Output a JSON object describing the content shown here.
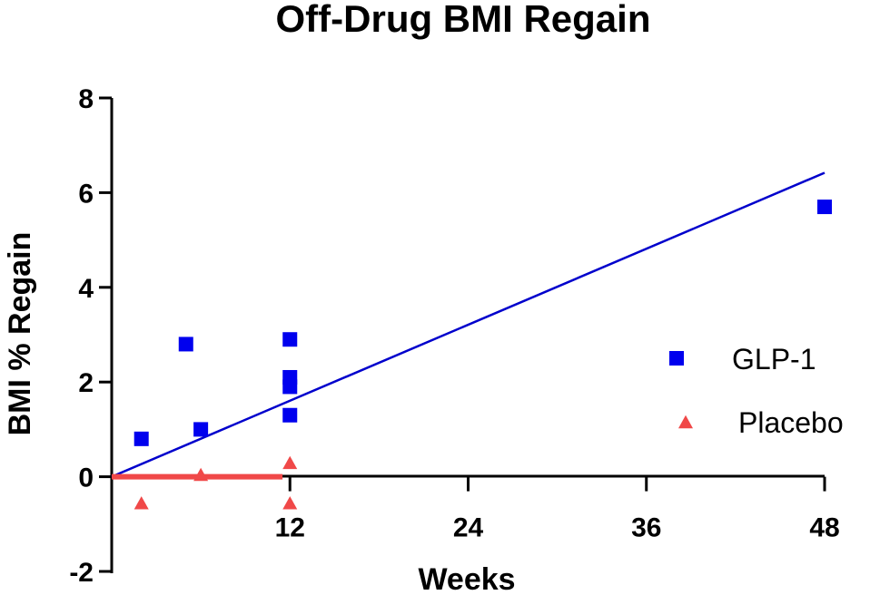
{
  "chart_data": {
    "type": "scatter",
    "title": "Off-Drug BMI Regain",
    "xlabel": "Weeks",
    "ylabel": "BMI % Regain",
    "xlim": [
      0,
      48
    ],
    "ylim": [
      -2,
      8
    ],
    "x_ticks": [
      12,
      24,
      36,
      48
    ],
    "y_ticks": [
      -2,
      0,
      2,
      4,
      6,
      8
    ],
    "legend_position": "right",
    "series": [
      {
        "name": "GLP-1",
        "marker": "square",
        "color": "#0000ee",
        "points": [
          {
            "x": 2,
            "y": 0.8
          },
          {
            "x": 5,
            "y": 2.8
          },
          {
            "x": 6,
            "y": 1.0
          },
          {
            "x": 12,
            "y": 2.9
          },
          {
            "x": 12,
            "y": 2.1
          },
          {
            "x": 12,
            "y": 1.9
          },
          {
            "x": 12,
            "y": 1.3
          },
          {
            "x": 48,
            "y": 5.7
          }
        ],
        "trendline": {
          "x": [
            0,
            48
          ],
          "y": [
            0,
            6.42
          ],
          "color": "#0000cc"
        }
      },
      {
        "name": "Placebo",
        "marker": "triangle",
        "color": "#f04848",
        "points": [
          {
            "x": 2,
            "y": -0.55
          },
          {
            "x": 6,
            "y": 0.05
          },
          {
            "x": 12,
            "y": 0.3
          },
          {
            "x": 12,
            "y": -0.55
          }
        ],
        "trendline": {
          "x": [
            0,
            11.5
          ],
          "y": [
            0,
            0
          ],
          "color": "#f04848"
        }
      }
    ]
  }
}
